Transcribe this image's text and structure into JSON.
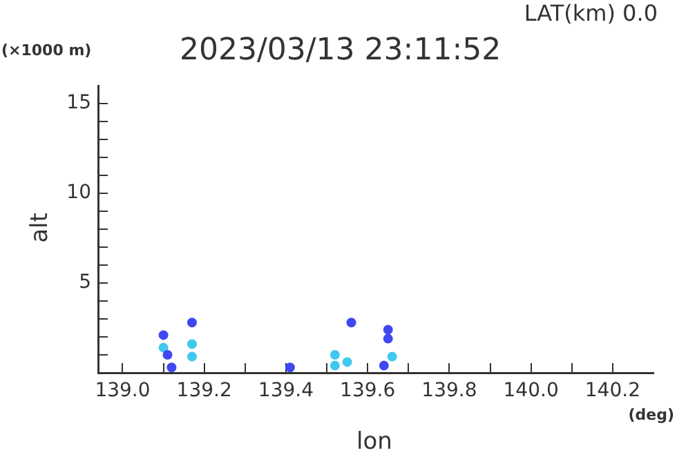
{
  "chart_data": {
    "type": "scatter",
    "title": "2023/03/13 23:11:52",
    "subtitle": "LAT(km) 0.0",
    "xlabel": "lon",
    "ylabel": "alt",
    "annotations": [
      "(×1000 m)",
      "(deg)"
    ],
    "x": [
      139.1,
      139.1,
      139.11,
      139.12,
      139.17,
      139.17,
      139.17,
      139.41,
      139.52,
      139.52,
      139.55,
      139.56,
      139.64,
      139.65,
      139.65,
      139.66
    ],
    "values": [
      2.1,
      1.4,
      1.0,
      0.3,
      2.8,
      1.6,
      0.9,
      0.3,
      1.0,
      0.4,
      0.6,
      2.8,
      0.4,
      2.4,
      1.9,
      0.9
    ],
    "colors": [
      "#3f48f0",
      "#40c8f0",
      "#3f48f0",
      "#3f48f0",
      "#3f48f0",
      "#40c8f0",
      "#40c8f0",
      "#3f48f0",
      "#40c8f0",
      "#40c8f0",
      "#40c8f0",
      "#3f48f0",
      "#3f48f0",
      "#3f48f0",
      "#3f48f0",
      "#40c8f0"
    ],
    "marker": "circle",
    "grid": false,
    "legend": false,
    "xlim": [
      138.94,
      140.3
    ],
    "ylim": [
      0,
      16
    ],
    "xticks": [
      {
        "value": 139.0,
        "label": "139.0"
      },
      {
        "value": 139.1,
        "label": null
      },
      {
        "value": 139.2,
        "label": "139.2"
      },
      {
        "value": 139.3,
        "label": null
      },
      {
        "value": 139.4,
        "label": "139.4"
      },
      {
        "value": 139.5,
        "label": null
      },
      {
        "value": 139.6,
        "label": "139.6"
      },
      {
        "value": 139.7,
        "label": null
      },
      {
        "value": 139.8,
        "label": "139.8"
      },
      {
        "value": 139.9,
        "label": null
      },
      {
        "value": 140.0,
        "label": "140.0"
      },
      {
        "value": 140.1,
        "label": null
      },
      {
        "value": 140.2,
        "label": "140.2"
      }
    ],
    "yticks": [
      {
        "value": 1,
        "label": null
      },
      {
        "value": 2,
        "label": null
      },
      {
        "value": 3,
        "label": null
      },
      {
        "value": 4,
        "label": null
      },
      5,
      {
        "value": 6,
        "label": null
      },
      {
        "value": 7,
        "label": null
      },
      {
        "value": 8,
        "label": null
      },
      {
        "value": 9,
        "label": null
      },
      10,
      {
        "value": 11,
        "label": null
      },
      {
        "value": 12,
        "label": null
      },
      {
        "value": 13,
        "label": null
      },
      {
        "value": 14,
        "label": null
      },
      15
    ]
  }
}
